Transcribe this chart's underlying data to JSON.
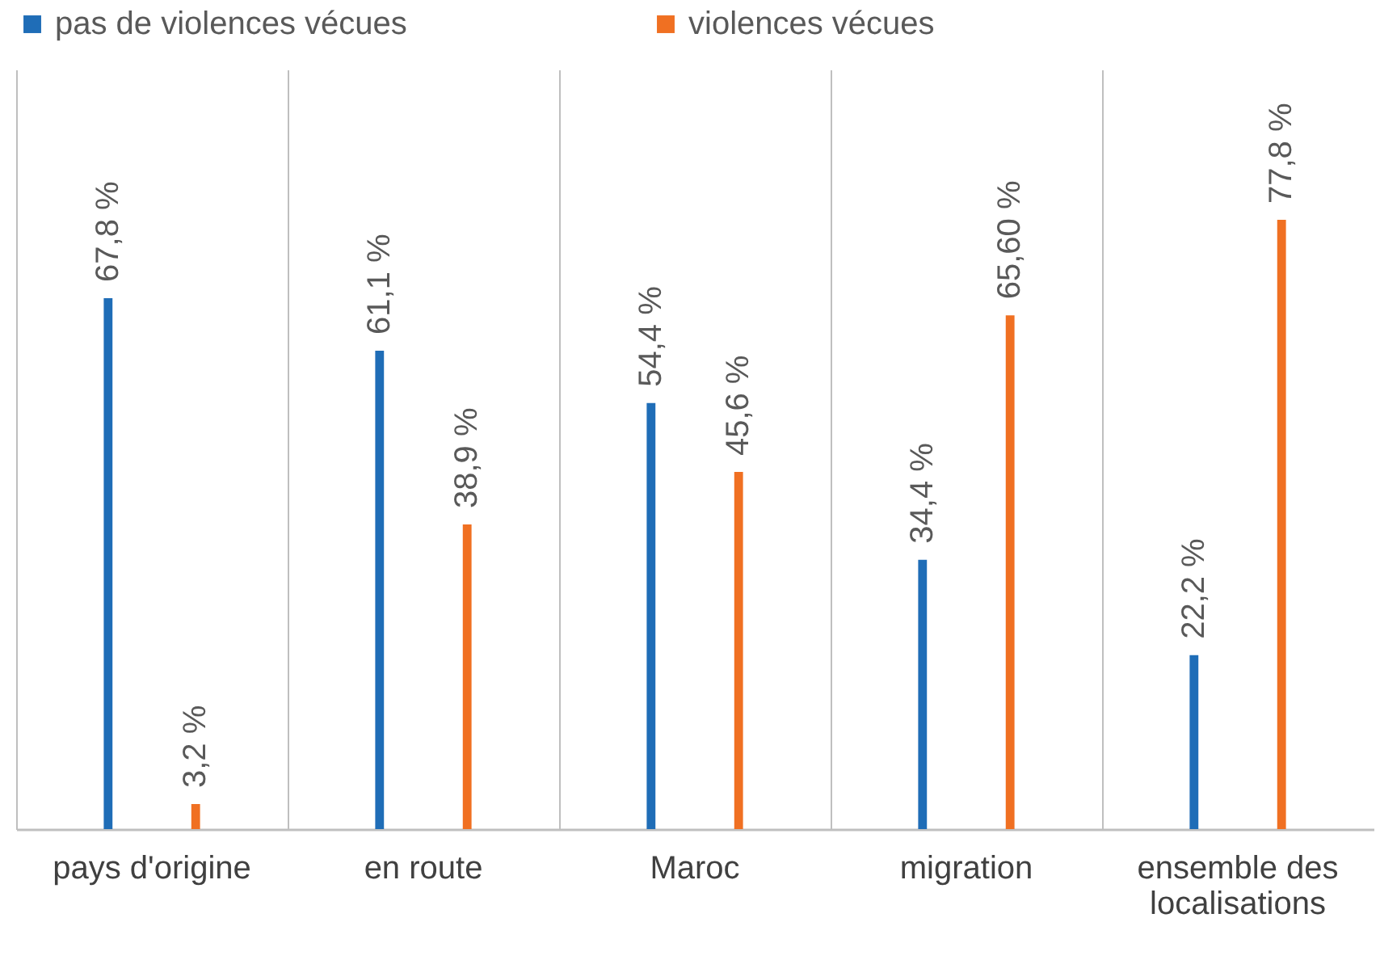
{
  "chart_data": {
    "type": "bar",
    "categories": [
      "pays d'origine",
      "en route",
      "Maroc",
      "migration",
      "ensemble des localisations"
    ],
    "series": [
      {
        "name": "pas de violences vécues",
        "color": "#1f6db7",
        "values": [
          67.8,
          61.1,
          54.4,
          34.4,
          22.2
        ],
        "value_labels": [
          "67,8 %",
          "61,1 %",
          "54,4 %",
          "34,4 %",
          "22,2 %"
        ]
      },
      {
        "name": "violences vécues",
        "color": "#f07022",
        "values": [
          3.2,
          38.9,
          45.6,
          65.6,
          77.8
        ],
        "value_labels": [
          "3,2 %",
          "38,9 %",
          "45,6 %",
          "65,60 %",
          "77,8 %"
        ]
      }
    ],
    "ylim": [
      0,
      97
    ],
    "grid": "x",
    "legend": "top left",
    "tick_labels": "x"
  }
}
